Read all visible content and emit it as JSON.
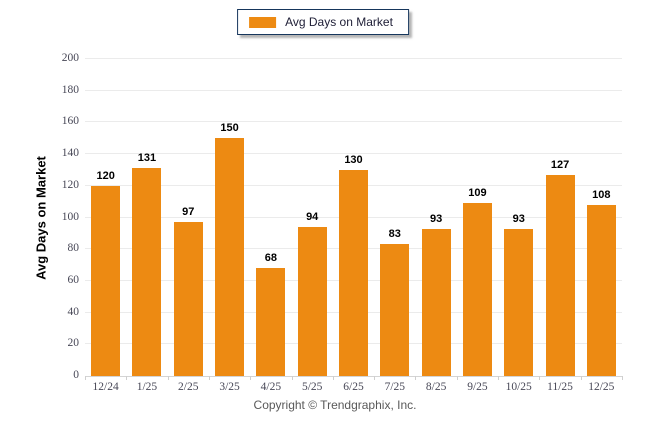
{
  "chart_data": {
    "type": "bar",
    "title": "",
    "legend_label": "Avg Days on Market",
    "legend_position": "top-center",
    "categories": [
      "12/24",
      "1/25",
      "2/25",
      "3/25",
      "4/25",
      "5/25",
      "6/25",
      "7/25",
      "8/25",
      "9/25",
      "10/25",
      "11/25",
      "12/25"
    ],
    "values": [
      120,
      131,
      97,
      150,
      68,
      94,
      130,
      83,
      93,
      109,
      93,
      127,
      108
    ],
    "xlabel": "",
    "ylabel": "Avg Days on Market",
    "ylim": [
      0,
      200
    ],
    "yticks": [
      0,
      20,
      40,
      60,
      80,
      100,
      120,
      140,
      160,
      180,
      200
    ],
    "grid": true,
    "value_labels": true,
    "bar_color": "#ed8a12"
  },
  "footer": {
    "copyright": "Copyright © Trendgraphix, Inc."
  }
}
